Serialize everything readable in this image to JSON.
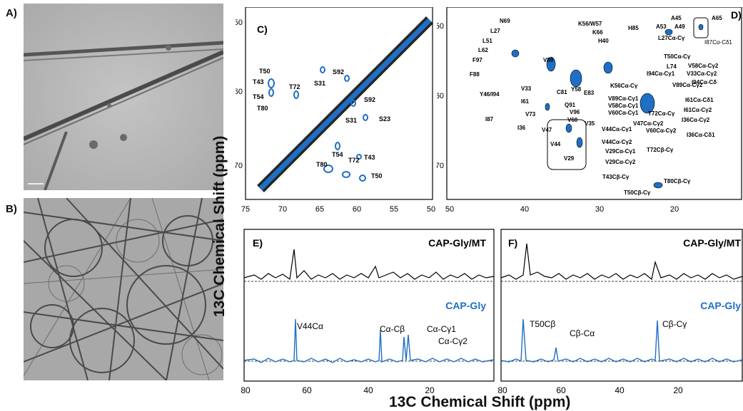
{
  "panels": {
    "a": {
      "label": "A)"
    },
    "b": {
      "label": "B)"
    },
    "c": {
      "label": "C)",
      "ticks_x": [
        "75",
        "70",
        "65",
        "60",
        "55",
        "50"
      ],
      "ticks_y": [
        "50",
        "60",
        "70"
      ],
      "peaks": [
        "T50",
        "T43",
        "T54",
        "T80",
        "T72",
        "S31",
        "S92",
        "S92",
        "S23",
        "S31",
        "T54",
        "T72",
        "T43",
        "T80",
        "T50"
      ]
    },
    "d": {
      "label": "D)",
      "ticks_x": [
        "50",
        "40",
        "30",
        "20"
      ],
      "ticks_y": [
        "50",
        "60",
        "70"
      ],
      "peaks": [
        "N69",
        "L27",
        "L51",
        "L62",
        "F97",
        "F88",
        "Y46/I94",
        "I87",
        "V33",
        "I61",
        "V73",
        "I36",
        "V47",
        "V60",
        "V35",
        "K56/W57",
        "K66",
        "H40",
        "H85",
        "A53",
        "A45",
        "A49",
        "A65",
        "I87Cα-Cδ1",
        "L27Cα-Cγ",
        "T50Cα-Cγ",
        "L74",
        "I94Cα-Cγ1",
        "V58Cα-Cγ2",
        "V33Cα-Cγ2",
        "I94Cα-Cδ",
        "V89Cα-Cγ2",
        "I61Cα-Cδ1",
        "I61Cα-Cγ2",
        "I36Cα-Cγ2",
        "I36Cα-Cδ1",
        "T72Cα-Cγ",
        "V60Cα-Cγ2",
        "V47Cα-Cγ2",
        "T72Cβ-Cγ",
        "T80Cβ-Cγ",
        "T43Cβ-Cγ",
        "T50Cβ-Cγ",
        "V89",
        "C81",
        "Y58",
        "E83",
        "Q91",
        "V96",
        "K56Cα-Cγ",
        "V89Cα-Cγ1",
        "V58Cα-Cγ1",
        "V60Cα-Cγ1",
        "V44Cα-Cγ1",
        "V44Cα-Cγ2",
        "V29Cα-Cγ1",
        "V29Cα-Cγ2",
        "V44",
        "V29"
      ]
    },
    "e": {
      "label": "E)",
      "top_trace": "CAP-Gly/MT",
      "bottom_trace": "CAP-Gly",
      "labels": [
        "V44Cα",
        "Cα-Cβ",
        "Cα-Cγ1",
        "Cα-Cγ2"
      ]
    },
    "f": {
      "label": "F)",
      "top_trace": "CAP-Gly/MT",
      "bottom_trace": "CAP-Gly",
      "labels": [
        "T50Cβ",
        "Cβ-Cα",
        "Cβ-Cγ"
      ]
    }
  },
  "axes": {
    "y_title": "13C Chemical Shift (ppm)",
    "x_title": "13C Chemical Shift (ppm)",
    "bottom_ticks_e": [
      "80",
      "60",
      "40",
      "20"
    ],
    "bottom_ticks_f": [
      "80",
      "60",
      "40",
      "20"
    ]
  },
  "colors": {
    "blue": "#1f6fc4",
    "black": "#000000"
  }
}
